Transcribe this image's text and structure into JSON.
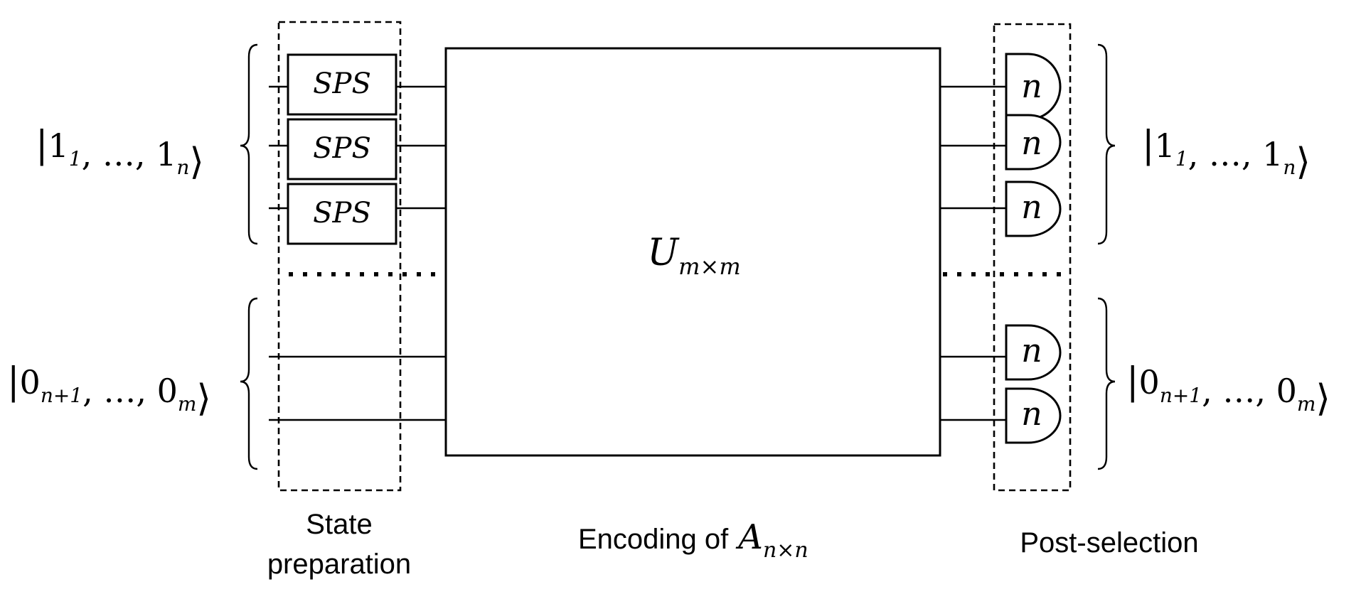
{
  "diagram": {
    "input_ket_top": {
      "open": "|",
      "parts": [
        [
          "1",
          "1"
        ],
        [
          "…",
          ""
        ],
        [
          "1",
          "n"
        ]
      ],
      "close": "⟩"
    },
    "input_ket_bottom": {
      "open": "|",
      "parts": [
        [
          "0",
          "n+1"
        ],
        [
          "…",
          ""
        ],
        [
          "0",
          "m"
        ]
      ],
      "close": "⟩"
    },
    "output_ket_top": {
      "open": "|",
      "parts": [
        [
          "1",
          "1"
        ],
        [
          "…",
          ""
        ],
        [
          "1",
          "n"
        ]
      ],
      "close": "⟩"
    },
    "output_ket_bottom": {
      "open": "|",
      "parts": [
        [
          "0",
          "n+1"
        ],
        [
          "…",
          ""
        ],
        [
          "0",
          "m"
        ]
      ],
      "close": "⟩"
    },
    "sources": [
      "SPS",
      "SPS",
      "SPS"
    ],
    "unitary": {
      "base": "U",
      "sub": "m×m"
    },
    "detectors": [
      "n",
      "n",
      "n",
      "n",
      "n"
    ],
    "captions": {
      "state_preparation_line1": "State",
      "state_preparation_line2": "preparation",
      "encoding_text": "Encoding of",
      "encoding_math_base": "A",
      "encoding_math_sub": "n×n",
      "post_selection": "Post-selection"
    }
  }
}
